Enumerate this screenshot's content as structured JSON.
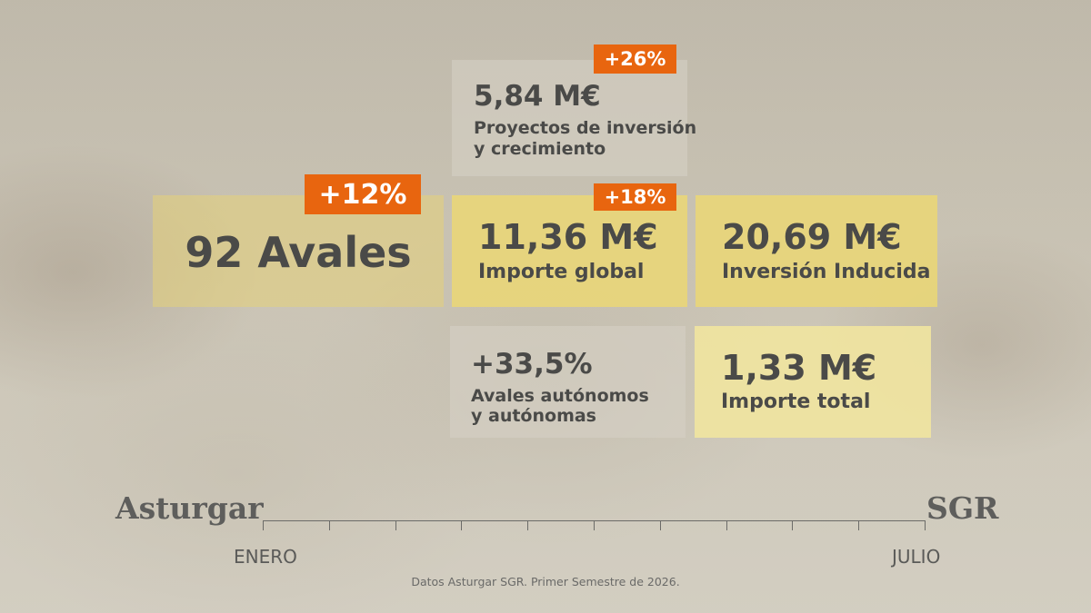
{
  "cards": {
    "proyectos": {
      "badge": "+26%",
      "value": "5,84 M€",
      "label_line1": "Proyectos de inversión",
      "label_line2": "y crecimiento"
    },
    "avales": {
      "badge": "+12%",
      "value": "92 Avales"
    },
    "importe_global": {
      "badge": "+18%",
      "value": "11,36 M€",
      "label": "Importe global"
    },
    "inversion": {
      "value": "20,69 M€",
      "label": "Inversión Inducida"
    },
    "autonomos": {
      "value": "+33,5%",
      "label_line1": "Avales autónomos",
      "label_line2": "y autónomas"
    },
    "importe_total": {
      "value": "1,33 M€",
      "label": "Importe total"
    }
  },
  "timeline": {
    "left_brand": "Asturgar",
    "right_brand": "SGR",
    "start_label": "ENERO",
    "end_label": "JULIO"
  },
  "source": "Datos Asturgar SGR. Primer Semestre de 2026.",
  "colors": {
    "badge": "#e8650f",
    "card_gold": "#e9d678",
    "card_pale": "#f0e4a0",
    "text": "#4a4a48"
  }
}
